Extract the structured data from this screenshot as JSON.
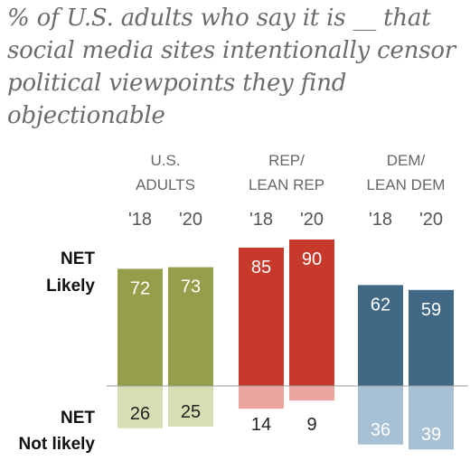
{
  "title": "% of U.S. adults who say it is __ that social media sites intentionally censor political viewpoints they find objectionable",
  "row_labels": {
    "likely": [
      "NET",
      "Likely"
    ],
    "not_likely": [
      "NET",
      "Not likely"
    ]
  },
  "colors": {
    "baseline": "#999999",
    "label_on_dark": "#ffffff",
    "label_on_light": "#222222"
  },
  "chart_data": {
    "type": "bar",
    "categories": [
      "'18",
      "'20",
      "'18",
      "'20",
      "'18",
      "'20"
    ],
    "groups": [
      {
        "label": [
          "U.S.",
          "ADULTS"
        ],
        "years": [
          "'18",
          "'20"
        ],
        "likely": [
          72,
          73
        ],
        "not_likely": [
          26,
          25
        ],
        "color_likely": "#949e4b",
        "color_not_likely": "#d8deb4"
      },
      {
        "label": [
          "REP/",
          "LEAN REP"
        ],
        "years": [
          "'18",
          "'20"
        ],
        "likely": [
          85,
          90
        ],
        "not_likely": [
          14,
          9
        ],
        "color_likely": "#c6392b",
        "color_not_likely": "#eba59e"
      },
      {
        "label": [
          "DEM/",
          "LEAN DEM"
        ],
        "years": [
          "'18",
          "'20"
        ],
        "likely": [
          62,
          59
        ],
        "not_likely": [
          36,
          39
        ],
        "color_likely": "#416884",
        "color_not_likely": "#a8c0d3"
      }
    ],
    "series": [
      {
        "name": "NET Likely",
        "values": [
          72,
          73,
          85,
          90,
          62,
          59
        ]
      },
      {
        "name": "NET Not likely",
        "values": [
          26,
          25,
          14,
          9,
          36,
          39
        ]
      }
    ],
    "ylim": [
      -40,
      100
    ]
  }
}
